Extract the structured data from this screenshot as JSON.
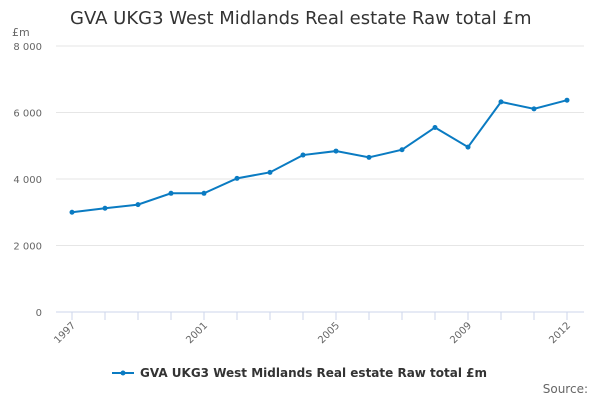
{
  "chart_data": {
    "type": "line",
    "title": "GVA UKG3 West Midlands Real estate Raw total £m",
    "ylabel": "£m",
    "xlabel": "",
    "ylim": [
      0,
      8000
    ],
    "yticks": [
      "0",
      "2 000",
      "4 000",
      "6 000",
      "8 000"
    ],
    "ytick_values": [
      0,
      2000,
      4000,
      6000,
      8000
    ],
    "x": [
      1997,
      1998,
      1999,
      2000,
      2001,
      2002,
      2003,
      2004,
      2005,
      2006,
      2007,
      2008,
      2009,
      2010,
      2011,
      2012
    ],
    "xtick_labels": [
      "1997",
      "2001",
      "2005",
      "2009",
      "2012"
    ],
    "series": [
      {
        "name": "GVA UKG3 West Midlands Real estate Raw total £m",
        "color": "#0a7bc2",
        "values": [
          3000,
          3120,
          3230,
          3570,
          3570,
          4020,
          4200,
          4720,
          4840,
          4650,
          4880,
          5550,
          4960,
          6320,
          6110,
          6370
        ]
      }
    ],
    "grid": true,
    "legend_position": "bottom",
    "source_label": "Source:"
  }
}
